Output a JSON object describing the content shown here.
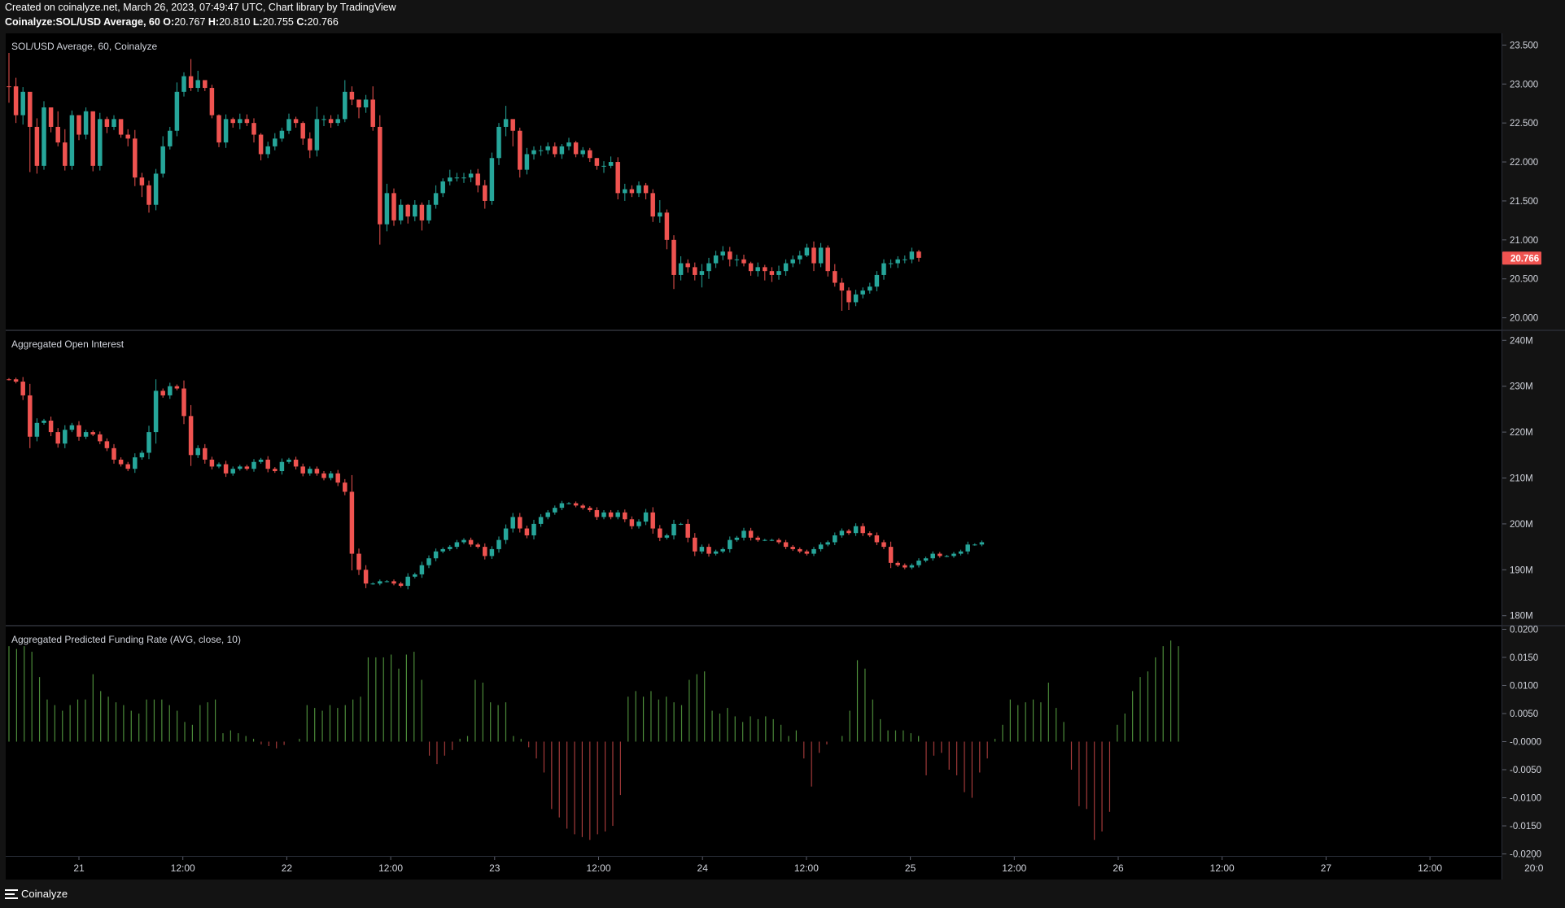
{
  "header": {
    "created_line": "Created on coinalyze.net, March 26, 2023, 07:49:47 UTC, Chart library by TradingView",
    "symbol": "Coinalyze:SOL/USD Average, 60",
    "o_label": "O:",
    "o_value": "20.767",
    "h_label": "H:",
    "h_value": "20.810",
    "l_label": "L:",
    "l_value": "20.755",
    "c_label": "C:",
    "c_value": "20.766"
  },
  "footer": {
    "brand": "Coinalyze",
    "icon": "menu-lines-icon"
  },
  "colors": {
    "up": "#26a69a",
    "down": "#ef5350",
    "funding_pos": "#4c8b3a",
    "funding_neg": "#a33a3a",
    "grid": "#363a45",
    "text": "#d1d4dc",
    "background": "#000000"
  },
  "chart_data": [
    {
      "type": "candlestick",
      "title": "SOL/USD Average, 60, Coinalyze",
      "ylim": [
        19.85,
        23.65
      ],
      "y_ticks": [
        "23.500",
        "23.000",
        "22.500",
        "22.000",
        "21.500",
        "21.000",
        "20.500",
        "20.000"
      ],
      "last_price_label": "20.766",
      "close": [
        22.97,
        22.6,
        22.9,
        22.45,
        21.95,
        22.7,
        22.45,
        22.25,
        21.95,
        22.6,
        22.35,
        22.65,
        21.95,
        22.55,
        22.45,
        22.55,
        22.35,
        22.3,
        21.8,
        21.7,
        21.45,
        21.85,
        22.2,
        22.4,
        22.9,
        23.1,
        22.95,
        23.05,
        22.95,
        22.6,
        22.25,
        22.55,
        22.5,
        22.55,
        22.5,
        22.35,
        22.1,
        22.2,
        22.3,
        22.4,
        22.55,
        22.5,
        22.3,
        22.15,
        22.55,
        22.55,
        22.5,
        22.55,
        22.9,
        22.8,
        22.7,
        22.8,
        22.45,
        21.2,
        21.6,
        21.25,
        21.45,
        21.3,
        21.45,
        21.25,
        21.45,
        21.6,
        21.75,
        21.8,
        21.8,
        21.8,
        21.85,
        21.7,
        21.5,
        22.05,
        22.45,
        22.55,
        22.4,
        21.9,
        22.1,
        22.15,
        22.15,
        22.2,
        22.1,
        22.2,
        22.25,
        22.1,
        22.15,
        22.05,
        21.95,
        21.95,
        22.0,
        21.6,
        21.65,
        21.6,
        21.7,
        21.6,
        21.3,
        21.35,
        21.0,
        20.55,
        20.7,
        20.65,
        20.55,
        20.6,
        20.7,
        20.8,
        20.85,
        20.75,
        20.75,
        20.7,
        20.6,
        20.65,
        20.6,
        20.55,
        20.6,
        20.7,
        20.75,
        20.8,
        20.9,
        20.7,
        20.9,
        20.6,
        20.45,
        20.35,
        20.2,
        20.3,
        20.35,
        20.4,
        20.55,
        20.7,
        20.7,
        20.75,
        20.75,
        20.85,
        20.77
      ],
      "high": [
        23.4,
        23.08,
        22.96,
        22.5,
        22.56,
        22.78,
        22.6,
        22.65,
        22.42,
        22.66,
        22.6,
        22.7,
        22.56,
        22.63,
        22.58,
        22.6,
        22.47,
        22.42,
        22.41,
        21.86,
        21.76,
        21.91,
        22.33,
        22.45,
        23.02,
        23.15,
        23.32,
        23.17,
        23.01,
        22.99,
        22.61,
        22.61,
        22.57,
        22.62,
        22.61,
        22.56,
        22.37,
        22.26,
        22.37,
        22.44,
        22.62,
        22.58,
        22.52,
        22.38,
        22.71,
        22.6,
        22.6,
        22.61,
        23.05,
        22.97,
        22.79,
        22.86,
        22.97,
        22.6,
        21.72,
        21.66,
        21.52,
        21.46,
        21.51,
        21.48,
        21.51,
        21.7,
        21.79,
        21.9,
        21.86,
        21.86,
        21.9,
        21.91,
        21.77,
        22.12,
        22.5,
        22.72,
        22.53,
        22.44,
        22.18,
        22.2,
        22.21,
        22.25,
        22.25,
        22.23,
        22.31,
        22.27,
        22.19,
        22.18,
        22.05,
        22.01,
        22.07,
        22.06,
        21.72,
        21.7,
        21.75,
        21.73,
        21.65,
        21.51,
        21.39,
        21.06,
        20.79,
        20.75,
        20.71,
        20.69,
        20.77,
        20.86,
        20.92,
        20.91,
        20.81,
        20.81,
        20.72,
        20.71,
        20.68,
        20.65,
        20.67,
        20.75,
        20.8,
        20.86,
        20.95,
        20.98,
        20.96,
        20.93,
        20.69,
        20.51,
        20.39,
        20.36,
        20.39,
        20.45,
        20.6,
        20.75,
        20.75,
        20.79,
        20.8,
        20.9,
        20.87
      ],
      "low": [
        22.76,
        22.5,
        22.48,
        21.87,
        21.85,
        21.9,
        22.38,
        22.2,
        21.89,
        21.9,
        22.28,
        22.29,
        21.88,
        21.89,
        22.37,
        22.41,
        22.31,
        22.2,
        21.69,
        21.55,
        21.35,
        21.38,
        21.8,
        22.16,
        22.33,
        22.84,
        22.91,
        22.9,
        22.91,
        22.56,
        22.19,
        22.18,
        22.44,
        22.42,
        22.46,
        22.25,
        22.02,
        22.05,
        22.15,
        22.26,
        22.36,
        22.44,
        22.22,
        22.05,
        22.07,
        22.46,
        22.44,
        22.46,
        22.51,
        22.73,
        22.56,
        22.63,
        22.4,
        20.94,
        21.11,
        21.18,
        21.2,
        21.21,
        21.24,
        21.12,
        21.21,
        21.4,
        21.55,
        21.7,
        21.75,
        21.73,
        21.74,
        21.61,
        21.4,
        21.45,
        21.96,
        22.33,
        22.2,
        21.8,
        21.84,
        22.03,
        22.08,
        22.1,
        22.06,
        22.04,
        22.15,
        22.06,
        22.06,
        22.0,
        21.9,
        21.86,
        21.92,
        21.52,
        21.5,
        21.55,
        21.55,
        21.52,
        21.23,
        21.22,
        20.88,
        20.37,
        20.48,
        20.58,
        20.48,
        20.39,
        20.5,
        20.64,
        20.74,
        20.66,
        20.66,
        20.66,
        20.54,
        20.53,
        20.48,
        20.46,
        20.49,
        20.54,
        20.65,
        20.69,
        20.78,
        20.6,
        20.65,
        20.53,
        20.4,
        20.09,
        20.1,
        20.15,
        20.25,
        20.31,
        20.34,
        20.49,
        20.64,
        20.64,
        20.7,
        20.7,
        20.72
      ]
    },
    {
      "type": "candlestick",
      "title": "Aggregated Open Interest",
      "ylim": [
        178,
        242
      ],
      "y_ticks": [
        "240M",
        "230M",
        "220M",
        "210M",
        "200M",
        "190M",
        "180M"
      ],
      "close": [
        231.5,
        231.0,
        228.0,
        219.0,
        222.0,
        222.5,
        220.0,
        217.5,
        220.5,
        221.5,
        219.0,
        220.0,
        219.5,
        218.0,
        216.5,
        214.0,
        213.0,
        212.0,
        214.5,
        215.5,
        220.0,
        229.0,
        228.0,
        230.0,
        229.5,
        223.5,
        215.0,
        216.5,
        214.0,
        212.5,
        213.0,
        211.0,
        212.0,
        212.5,
        212.0,
        213.5,
        214.0,
        212.0,
        211.5,
        213.5,
        214.0,
        212.5,
        211.0,
        212.0,
        211.0,
        210.0,
        211.0,
        209.0,
        207.0,
        193.5,
        190.0,
        187.0,
        187.0,
        187.5,
        187.5,
        187.0,
        186.5,
        188.5,
        189.0,
        191.0,
        192.5,
        194.0,
        194.5,
        195.0,
        196.0,
        196.5,
        195.5,
        195.0,
        193.0,
        194.5,
        196.5,
        199.0,
        201.5,
        199.0,
        197.5,
        200.0,
        201.5,
        202.5,
        203.5,
        204.5,
        204.5,
        204.0,
        203.5,
        203.0,
        201.5,
        202.5,
        201.5,
        202.5,
        201.0,
        199.5,
        200.5,
        202.5,
        199.0,
        197.0,
        197.5,
        200.0,
        200.0,
        197.0,
        194.0,
        195.0,
        193.5,
        194.0,
        194.5,
        196.5,
        197.0,
        198.5,
        197.0,
        196.5,
        196.5,
        196.5,
        196.0,
        195.0,
        194.5,
        194.0,
        193.5,
        194.5,
        195.5,
        196.0,
        197.5,
        198.5,
        198.0,
        199.5,
        198.0,
        197.5,
        196.0,
        195.0,
        191.5,
        191.0,
        190.5,
        191.0,
        192.0,
        192.5,
        193.5,
        193.0,
        193.0,
        193.5,
        194.0,
        195.5,
        195.5,
        196.0
      ]
    },
    {
      "type": "bar",
      "title": "Aggregated Predicted Funding Rate (AVG, close, 10)",
      "ylim": [
        -0.0205,
        0.0205
      ],
      "y_ticks": [
        "0.0200",
        "0.0150",
        "0.0100",
        "0.0050",
        "-0.0000",
        "-0.0050",
        "-0.0100",
        "-0.0150",
        "-0.0200"
      ],
      "values": [
        0.017,
        0.0165,
        0.017,
        0.016,
        0.0115,
        0.0075,
        0.0065,
        0.0055,
        0.0065,
        0.0075,
        0.0075,
        0.012,
        0.009,
        0.008,
        0.007,
        0.0065,
        0.0055,
        0.005,
        0.0075,
        0.0075,
        0.0075,
        0.0065,
        0.0055,
        0.0035,
        0.003,
        0.0065,
        0.007,
        0.0075,
        0.0015,
        0.002,
        0.0015,
        0.001,
        0.0005,
        -0.0005,
        -0.0008,
        -0.0012,
        -0.0006,
        0.0,
        0.0005,
        0.0065,
        0.006,
        0.0055,
        0.0065,
        0.006,
        0.0065,
        0.0075,
        0.008,
        0.015,
        0.015,
        0.015,
        0.0155,
        0.013,
        0.0155,
        0.016,
        0.011,
        -0.0025,
        -0.004,
        -0.0025,
        -0.0015,
        0.0005,
        0.001,
        0.011,
        0.0105,
        0.007,
        0.0065,
        0.007,
        0.001,
        0.0005,
        -0.001,
        -0.003,
        -0.0055,
        -0.012,
        -0.0135,
        -0.0155,
        -0.0165,
        -0.017,
        -0.0175,
        -0.0165,
        -0.016,
        -0.015,
        -0.0095,
        0.008,
        0.009,
        0.008,
        0.009,
        0.0075,
        0.008,
        0.007,
        0.0065,
        0.011,
        0.012,
        0.0125,
        0.0055,
        0.005,
        0.006,
        0.0045,
        0.0035,
        0.0045,
        0.004,
        0.0045,
        0.004,
        0.003,
        0.001,
        0.002,
        -0.003,
        -0.008,
        -0.002,
        -0.0005,
        0.0,
        0.001,
        0.0055,
        0.0145,
        0.013,
        0.0075,
        0.004,
        0.002,
        0.002,
        0.002,
        0.0015,
        0.001,
        -0.006,
        -0.0025,
        -0.002,
        -0.005,
        -0.006,
        -0.009,
        -0.01,
        -0.0055,
        -0.003,
        0.0005,
        0.003,
        0.0075,
        0.0065,
        0.007,
        0.0075,
        0.007,
        0.0105,
        0.006,
        0.0035,
        -0.005,
        -0.0115,
        -0.012,
        -0.0175,
        -0.016,
        -0.0125,
        0.003,
        0.005,
        0.009,
        0.0115,
        0.0125,
        0.015,
        0.017,
        0.018,
        0.017
      ]
    }
  ],
  "x_axis": {
    "labels": [
      "21",
      "12:00",
      "22",
      "12:00",
      "23",
      "12:00",
      "24",
      "12:00",
      "25",
      "12:00",
      "26",
      "12:00",
      "27",
      "12:00",
      "20:0"
    ]
  }
}
